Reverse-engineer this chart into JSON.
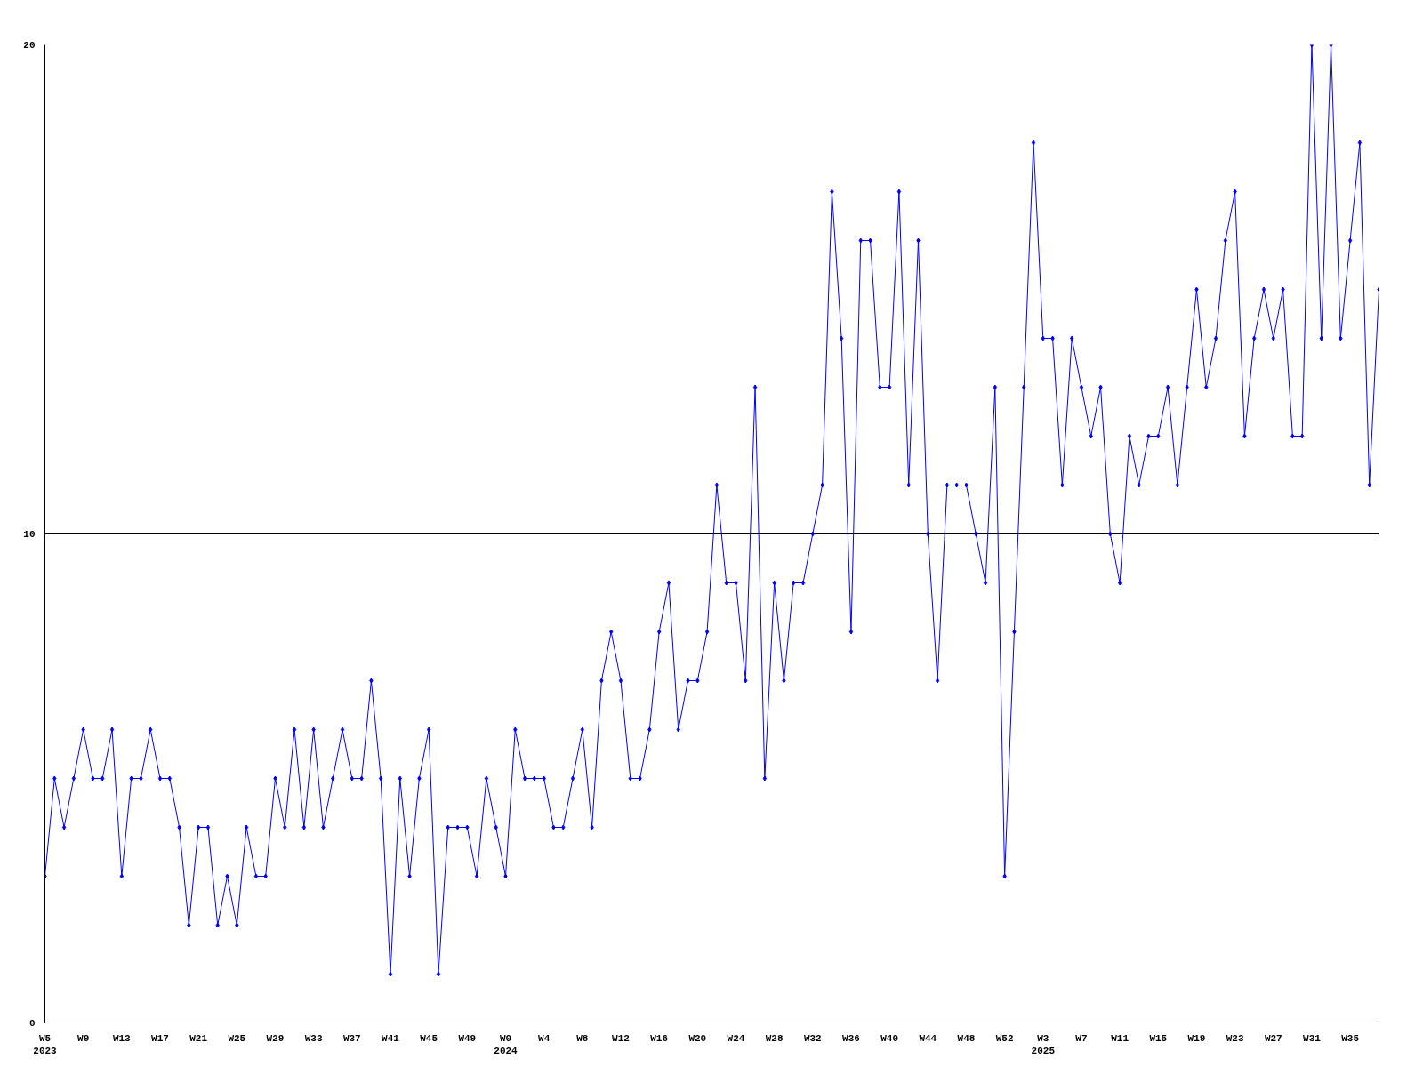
{
  "chart_data": {
    "type": "line",
    "categories": [
      "W5\n2023",
      null,
      null,
      null,
      "W9",
      null,
      null,
      null,
      "W13",
      null,
      null,
      null,
      "W17",
      null,
      null,
      null,
      "W21",
      null,
      null,
      null,
      "W25",
      null,
      null,
      null,
      "W29",
      null,
      null,
      null,
      "W33",
      null,
      null,
      null,
      "W37",
      null,
      null,
      null,
      "W41",
      null,
      null,
      null,
      "W45",
      null,
      null,
      null,
      "W49",
      null,
      null,
      null,
      "W0\n2024",
      null,
      null,
      null,
      "W4",
      null,
      null,
      null,
      "W8",
      null,
      null,
      null,
      "W12",
      null,
      null,
      null,
      "W16",
      null,
      null,
      null,
      "W20",
      null,
      null,
      null,
      "W24",
      null,
      null,
      null,
      "W28",
      null,
      null,
      null,
      "W32",
      null,
      null,
      null,
      "W36",
      null,
      null,
      null,
      "W40",
      null,
      null,
      null,
      "W44",
      null,
      null,
      null,
      "W48",
      null,
      null,
      null,
      "W52",
      null,
      null,
      null,
      "W3\n2025",
      null,
      null,
      null,
      "W7",
      null,
      null,
      null,
      "W11",
      null,
      null,
      null,
      "W15",
      null,
      null,
      null,
      "W19",
      null,
      null,
      null,
      "W23",
      null,
      null,
      null,
      "W27",
      null,
      null,
      null,
      "W31",
      null,
      null,
      null,
      "W35",
      null,
      null,
      null
    ],
    "series": [
      {
        "color": "#0000ff",
        "values": [
          3,
          5,
          4,
          5,
          6,
          5,
          5,
          6,
          3,
          5,
          5,
          6,
          5,
          5,
          4,
          2,
          4,
          4,
          2,
          3,
          2,
          4,
          3,
          3,
          5,
          4,
          6,
          4,
          6,
          4,
          5,
          6,
          5,
          5,
          7,
          5,
          1,
          5,
          3,
          5,
          6,
          1,
          4,
          4,
          4,
          3,
          5,
          4,
          3,
          6,
          5,
          5,
          5,
          4,
          4,
          5,
          6,
          4,
          7,
          8,
          7,
          5,
          5,
          6,
          8,
          9,
          6,
          7,
          7,
          8,
          11,
          9,
          9,
          7,
          13,
          5,
          9,
          7,
          9,
          9,
          10,
          11,
          17,
          14,
          8,
          16,
          16,
          13,
          13,
          17,
          11,
          16,
          10,
          7,
          11,
          11,
          11,
          10,
          9,
          13,
          3,
          8,
          13,
          18,
          14,
          14,
          11,
          14,
          13,
          12,
          13,
          10,
          9,
          12,
          11,
          12,
          12,
          13,
          11,
          13,
          15,
          13,
          14,
          16,
          17,
          12,
          14,
          15,
          14,
          15,
          12,
          12,
          20,
          14,
          20,
          14,
          16,
          18,
          11,
          15
        ]
      }
    ],
    "ylim": [
      0,
      20
    ],
    "yticks": [
      0,
      10,
      20
    ],
    "grid": "y",
    "marker": "diamond",
    "line_style": "solid"
  }
}
